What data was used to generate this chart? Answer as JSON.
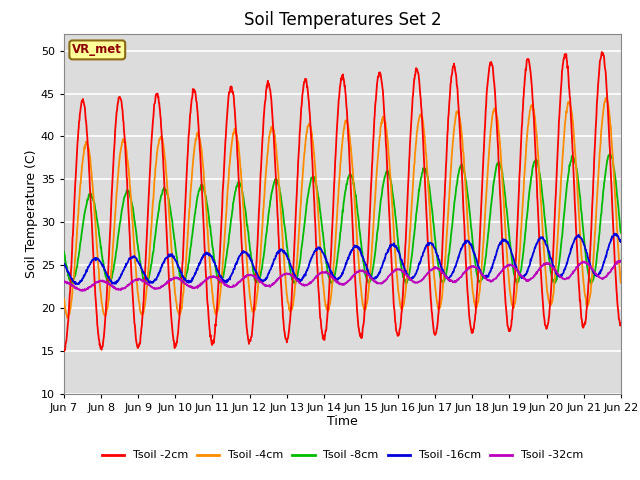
{
  "title": "Soil Temperatures Set 2",
  "xlabel": "Time",
  "ylabel": "Soil Temperature (C)",
  "ylim": [
    10,
    52
  ],
  "yticks": [
    10,
    15,
    20,
    25,
    30,
    35,
    40,
    45,
    50
  ],
  "n_days": 15,
  "annotation_text": "VR_met",
  "annotation_bg": "#FFFF99",
  "annotation_border": "#8B6914",
  "colors": {
    "Tsoil -2cm": "#FF0000",
    "Tsoil -4cm": "#FF8C00",
    "Tsoil -8cm": "#00BB00",
    "Tsoil -16cm": "#0000DD",
    "Tsoil -32cm": "#BB00BB"
  },
  "bg_color": "#DCDCDC",
  "grid_color": "#FFFFFF",
  "tick_labels": [
    "Jun 7",
    "Jun 8",
    "Jun 9",
    "Jun 10",
    "Jun 11",
    "Jun 12",
    "Jun 13",
    "Jun 14",
    "Jun 15",
    "Jun 16",
    "Jun 17",
    "Jun 18",
    "Jun 19",
    "Jun 20",
    "Jun 21",
    "Jun 22"
  ]
}
